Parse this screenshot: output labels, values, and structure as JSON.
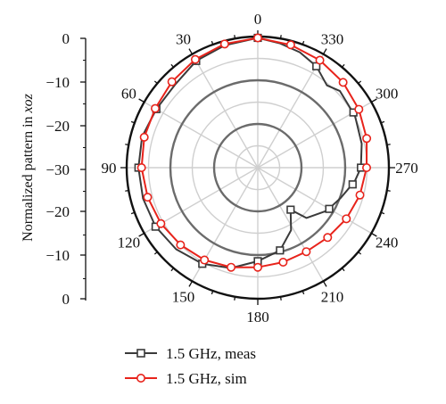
{
  "chart_data": {
    "type": "polar-line",
    "title": "",
    "ylabel": "Normalized pattern in xoz",
    "ylabel_prefix": "Normalized pattern in ",
    "ylabel_italic": "xoz",
    "r_ticks_upper": [
      "0",
      "−10",
      "−20",
      "−30"
    ],
    "r_ticks_lower": [
      "−20",
      "−10",
      "0"
    ],
    "r_range": [
      -30,
      0
    ],
    "angle_ticks": [
      {
        "deg": 0,
        "label": "0"
      },
      {
        "deg": 30,
        "label": "30"
      },
      {
        "deg": 60,
        "label": "60"
      },
      {
        "deg": 90,
        "label": "90"
      },
      {
        "deg": 120,
        "label": "120"
      },
      {
        "deg": 150,
        "label": "150"
      },
      {
        "deg": 180,
        "label": "180"
      },
      {
        "deg": 210,
        "label": "210"
      },
      {
        "deg": 240,
        "label": "240"
      },
      {
        "deg": 270,
        "label": "270"
      },
      {
        "deg": 300,
        "label": "300"
      },
      {
        "deg": 330,
        "label": "330"
      }
    ],
    "angle_direction": "counterclockwise",
    "grid": true,
    "legend_position": "bottom",
    "series": [
      {
        "name": "1.5 GHz, meas",
        "color": "#3a3a3a",
        "marker": "square",
        "points": [
          [
            0,
            -0.3
          ],
          [
            15,
            -1.0
          ],
          [
            30,
            -1.8
          ],
          [
            45,
            -3.2
          ],
          [
            60,
            -3.2
          ],
          [
            75,
            -2.6
          ],
          [
            90,
            -2.7
          ],
          [
            105,
            -2.8
          ],
          [
            120,
            -3.0
          ],
          [
            135,
            -3.6
          ],
          [
            150,
            -4.6
          ],
          [
            165,
            -6.2
          ],
          [
            180,
            -8.6
          ],
          [
            195,
            -10.4
          ],
          [
            208,
            -13.8
          ],
          [
            218,
            -17.8
          ],
          [
            224,
            -14.0
          ],
          [
            238,
            -11.4
          ],
          [
            250,
            -9.8
          ],
          [
            262,
            -7.6
          ],
          [
            270,
            -6.4
          ],
          [
            283,
            -5.6
          ],
          [
            298,
            -4.8
          ],
          [
            313,
            -4.3
          ],
          [
            320,
            -5.4
          ],
          [
            330,
            -3.2
          ],
          [
            340,
            -1.9
          ],
          [
            350,
            -1.1
          ]
        ],
        "marker_angles": [
          0,
          30,
          60,
          90,
          120,
          150,
          180,
          195,
          218,
          240,
          260,
          270,
          300,
          330
        ]
      },
      {
        "name": "1.5 GHz, sim",
        "color": "#e8231b",
        "marker": "circle",
        "points": [
          [
            0,
            -0.3
          ],
          [
            15,
            -0.7
          ],
          [
            30,
            -1.4
          ],
          [
            45,
            -2.2
          ],
          [
            60,
            -2.9
          ],
          [
            75,
            -3.1
          ],
          [
            90,
            -3.4
          ],
          [
            105,
            -3.9
          ],
          [
            120,
            -4.4
          ],
          [
            135,
            -5.0
          ],
          [
            150,
            -5.6
          ],
          [
            165,
            -6.4
          ],
          [
            180,
            -7.2
          ],
          [
            195,
            -7.6
          ],
          [
            210,
            -7.8
          ],
          [
            225,
            -7.4
          ],
          [
            240,
            -6.6
          ],
          [
            255,
            -5.8
          ],
          [
            270,
            -5.1
          ],
          [
            285,
            -4.2
          ],
          [
            300,
            -3.3
          ],
          [
            315,
            -2.4
          ],
          [
            330,
            -1.6
          ],
          [
            345,
            -0.9
          ]
        ],
        "marker_angles": [
          0,
          15,
          30,
          45,
          60,
          75,
          90,
          105,
          120,
          135,
          150,
          165,
          180,
          195,
          210,
          225,
          240,
          255,
          270,
          285,
          300,
          315,
          330,
          345
        ]
      }
    ]
  }
}
